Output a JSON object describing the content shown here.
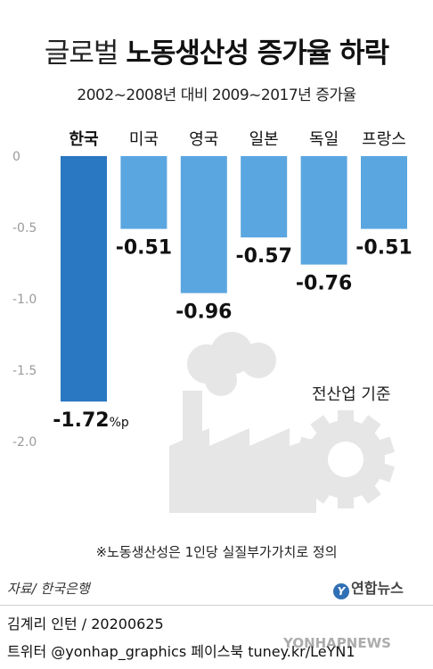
{
  "header": {
    "title_light": "글로벌",
    "title_bold": "노동생산성 증가율 하락",
    "subtitle": "2002~2008년 대비 2009~2017년 증가율"
  },
  "chart_data": {
    "type": "bar",
    "title": "글로벌 노동생산성 증가율 하락",
    "subtitle": "2002~2008년 대비 2009~2017년 증가율",
    "categories": [
      "한국",
      "미국",
      "영국",
      "일본",
      "독일",
      "프랑스"
    ],
    "values": [
      -1.72,
      -0.51,
      -0.96,
      -0.57,
      -0.76,
      -0.51
    ],
    "value_labels": [
      "-1.72",
      "-0.51",
      "-0.96",
      "-0.57",
      "-0.76",
      "-0.51"
    ],
    "unit": "%p",
    "highlight_category": "한국",
    "ylim": [
      -2.0,
      0
    ],
    "yticks": [
      0,
      -0.5,
      -1.0,
      -1.5,
      -2.0
    ],
    "ytick_labels": [
      "0",
      "-0.5",
      "-1.0",
      "-1.5",
      "-2.0"
    ],
    "annotation": "전산업 기준",
    "colors": {
      "highlight": "#2a77c2",
      "bar": "#5aa6e0",
      "axis_text": "#9a9a9a",
      "illustration": "#e6e6e6"
    }
  },
  "footnote": "※노동생산성은 1인당 실질부가가치로 정의",
  "source": "자료/ 한국은행",
  "logo": {
    "text": "연합뉴스",
    "mark": "Y"
  },
  "credit": "김계리 인턴 / 20200625",
  "social": "트위터 @yonhap_graphics  페이스북 tuney.kr/LeYN1",
  "watermark": "YONHAPNEWS"
}
